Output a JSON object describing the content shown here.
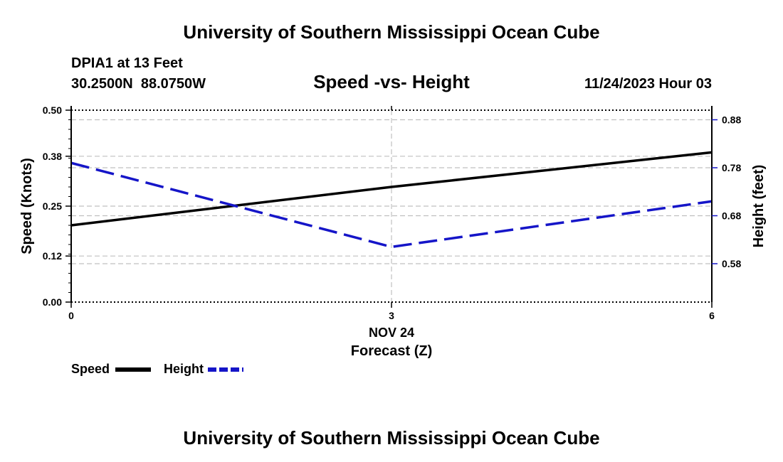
{
  "header": {
    "title": "University of Southern Mississippi Ocean Cube",
    "station": "DPIA1 at 13 Feet",
    "coords": "30.2500N  88.0750W",
    "chart_title": "Speed -vs- Height",
    "timestamp": "11/24/2023 Hour 03"
  },
  "footer": {
    "title": "University of Southern Mississippi Ocean Cube"
  },
  "legend": {
    "speed_label": "Speed",
    "height_label": "Height"
  },
  "colors": {
    "speed": "#000000",
    "height": "#1515c8",
    "grid": "#c0c0c0"
  },
  "chart_data": {
    "type": "line",
    "title": "Speed -vs- Height",
    "xlabel": "Forecast (Z)",
    "xsublabel": "NOV 24",
    "ylabel_left": "Speed (Knots)",
    "ylabel_right": "Height (feet)",
    "x": [
      0,
      3,
      6
    ],
    "xlim": [
      0,
      6
    ],
    "x_ticks": [
      "0",
      "3",
      "6"
    ],
    "ylim_left": [
      0,
      0.5
    ],
    "y_ticks_left": [
      "0.00",
      "0.12",
      "0.25",
      "0.38",
      "0.50"
    ],
    "ylim_right": [
      0.5,
      0.9
    ],
    "y_ticks_right": [
      "0.58",
      "0.68",
      "0.78",
      "0.88"
    ],
    "series": [
      {
        "name": "Speed",
        "axis": "left",
        "style": "solid",
        "values": [
          0.2,
          0.3,
          0.39
        ]
      },
      {
        "name": "Height",
        "axis": "right",
        "style": "dashed",
        "values": [
          0.79,
          0.615,
          0.71
        ]
      }
    ]
  }
}
